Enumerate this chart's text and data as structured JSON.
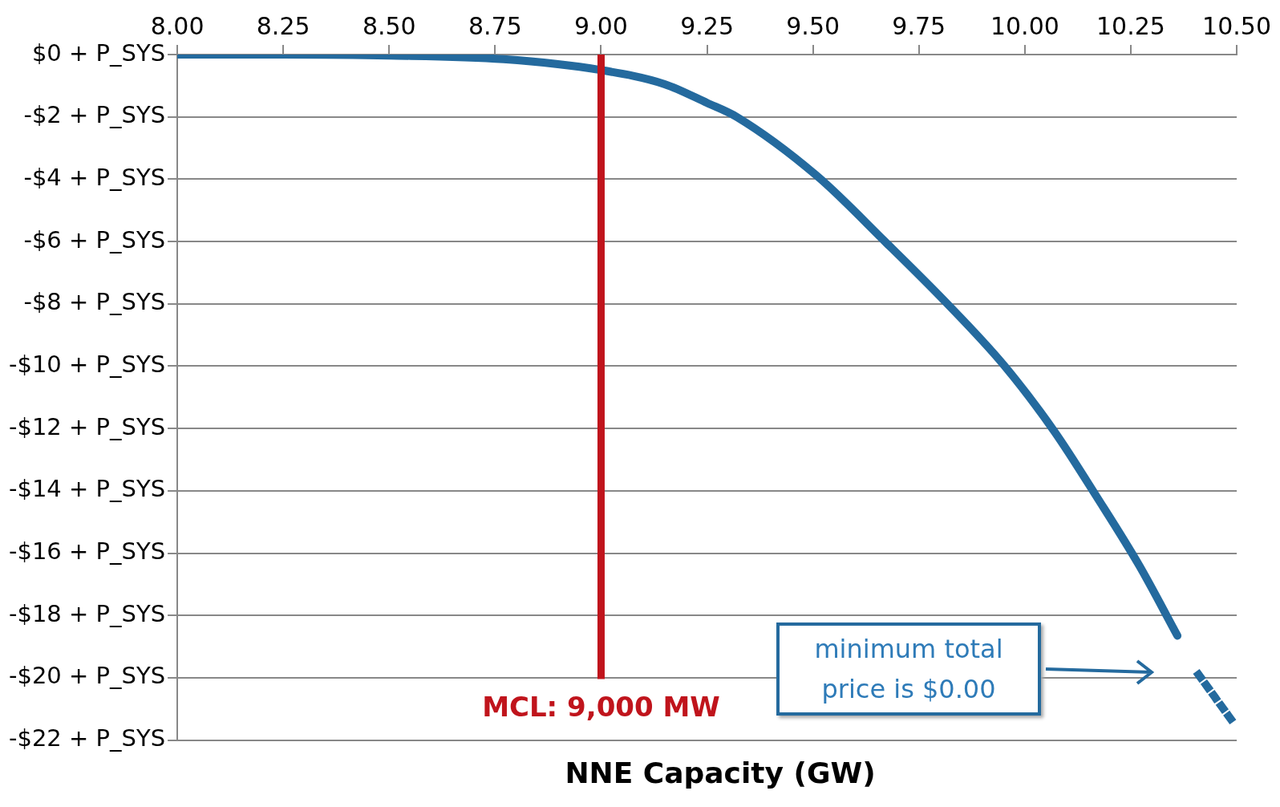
{
  "chart_data": {
    "type": "line",
    "xlabel": "NNE Capacity (GW)",
    "xlim": [
      8,
      10.5
    ],
    "xticks": [
      {
        "value": 8,
        "label": "8.00"
      },
      {
        "value": 8.25,
        "label": "8.25"
      },
      {
        "value": 8.5,
        "label": "8.50"
      },
      {
        "value": 8.75,
        "label": "8.75"
      },
      {
        "value": 9,
        "label": "9.00"
      },
      {
        "value": 9.25,
        "label": "9.25"
      },
      {
        "value": 9.5,
        "label": "9.50"
      },
      {
        "value": 9.75,
        "label": "9.75"
      },
      {
        "value": 10,
        "label": "10.00"
      },
      {
        "value": 10.25,
        "label": "10.25"
      },
      {
        "value": 10.5,
        "label": "10.50"
      }
    ],
    "ylim": [
      -22,
      0
    ],
    "yticks": [
      {
        "value": 0,
        "label": "$0 + P_SYS"
      },
      {
        "value": -2,
        "label": "-$2 + P_SYS"
      },
      {
        "value": -4,
        "label": "-$4 + P_SYS"
      },
      {
        "value": -6,
        "label": "-$6 + P_SYS"
      },
      {
        "value": -8,
        "label": "-$8 + P_SYS"
      },
      {
        "value": -10,
        "label": "-$10 + P_SYS"
      },
      {
        "value": -12,
        "label": "-$12 + P_SYS"
      },
      {
        "value": -14,
        "label": "-$14 + P_SYS"
      },
      {
        "value": -16,
        "label": "-$16 + P_SYS"
      },
      {
        "value": -18,
        "label": "-$18 + P_SYS"
      },
      {
        "value": -20,
        "label": "-$20 + P_SYS"
      },
      {
        "value": -22,
        "label": "-$22 + P_SYS"
      }
    ],
    "grid": "y",
    "legend": false,
    "marker": "none",
    "series": [
      {
        "color": "#246a9e",
        "line_style": "solid",
        "x": [
          8,
          8.25,
          8.5,
          8.77,
          9.0,
          9.15,
          9.25,
          9.32,
          9.51,
          9.67,
          9.81,
          9.95,
          10.07,
          10.17,
          10.27,
          10.36
        ],
        "values": [
          0,
          0,
          -0.03,
          -0.15,
          -0.5,
          -0.95,
          -1.55,
          -2.0,
          -3.9,
          -6.0,
          -7.9,
          -9.96,
          -12.1,
          -14.2,
          -16.4,
          -18.65
        ]
      },
      {
        "color": "#246a9e",
        "line_style": "dotted",
        "x": [
          10.41,
          10.49
        ],
        "values": [
          -19.9,
          -21.4
        ]
      }
    ],
    "ref_lines": [
      {
        "axis": "x",
        "value": 9,
        "label": "MCL: 9,000 MW",
        "color": "#c0141c"
      }
    ],
    "annotations": [
      "minimum total price is $0.00"
    ]
  }
}
